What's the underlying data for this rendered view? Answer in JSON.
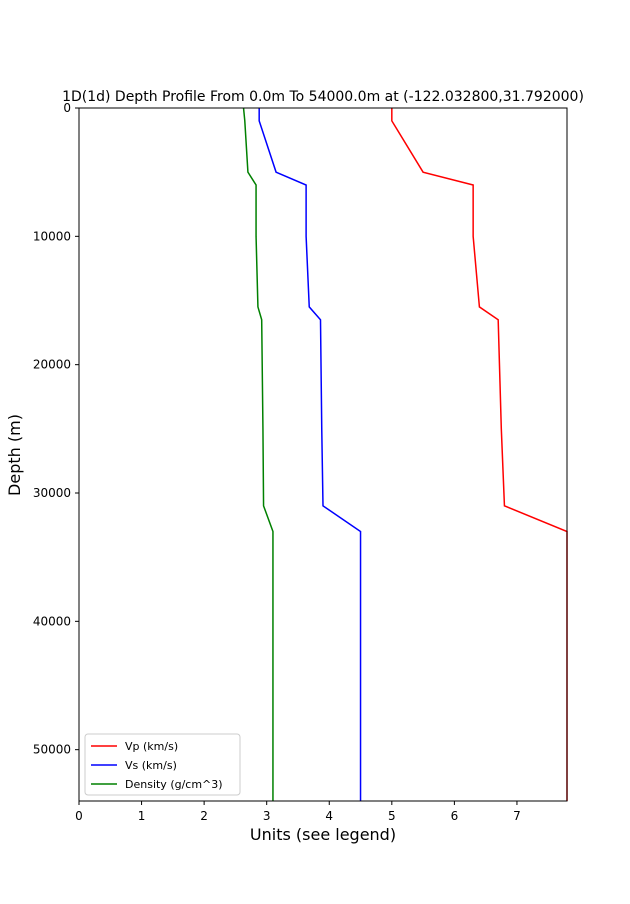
{
  "chart_data": {
    "type": "line",
    "title": "1D(1d) Depth Profile From 0.0m To 54000.0m at (-122.032800,31.792000)",
    "xlabel": "Units (see legend)",
    "ylabel": "Depth (m)",
    "xlim": [
      0,
      7.8
    ],
    "ylim": [
      54000,
      0
    ],
    "y_inverted": true,
    "grid": false,
    "legend_position": "lower-left",
    "x_ticks": [
      0,
      1,
      2,
      3,
      4,
      5,
      6,
      7
    ],
    "y_ticks": [
      0,
      10000,
      20000,
      30000,
      40000,
      50000
    ],
    "series": [
      {
        "name": "Vp (km/s)",
        "color": "#ff0000",
        "points": [
          [
            5.0,
            0
          ],
          [
            5.0,
            1000
          ],
          [
            5.5,
            5000
          ],
          [
            6.3,
            6000
          ],
          [
            6.3,
            10000
          ],
          [
            6.4,
            15500
          ],
          [
            6.7,
            16500
          ],
          [
            6.75,
            25000
          ],
          [
            6.8,
            31000
          ],
          [
            7.8,
            33000
          ],
          [
            7.8,
            54000
          ]
        ]
      },
      {
        "name": "Vs (km/s)",
        "color": "#0000ff",
        "points": [
          [
            2.88,
            0
          ],
          [
            2.88,
            1000
          ],
          [
            3.15,
            5000
          ],
          [
            3.63,
            6000
          ],
          [
            3.63,
            10000
          ],
          [
            3.68,
            15500
          ],
          [
            3.86,
            16500
          ],
          [
            3.88,
            25000
          ],
          [
            3.9,
            31000
          ],
          [
            4.5,
            33000
          ],
          [
            4.5,
            54000
          ]
        ]
      },
      {
        "name": "Density (g/cm^3)",
        "color": "#008000",
        "points": [
          [
            2.63,
            0
          ],
          [
            2.65,
            1000
          ],
          [
            2.7,
            5000
          ],
          [
            2.83,
            6000
          ],
          [
            2.83,
            10000
          ],
          [
            2.86,
            15500
          ],
          [
            2.92,
            16500
          ],
          [
            2.94,
            25000
          ],
          [
            2.95,
            31000
          ],
          [
            3.1,
            33000
          ],
          [
            3.1,
            54000
          ]
        ]
      }
    ]
  }
}
